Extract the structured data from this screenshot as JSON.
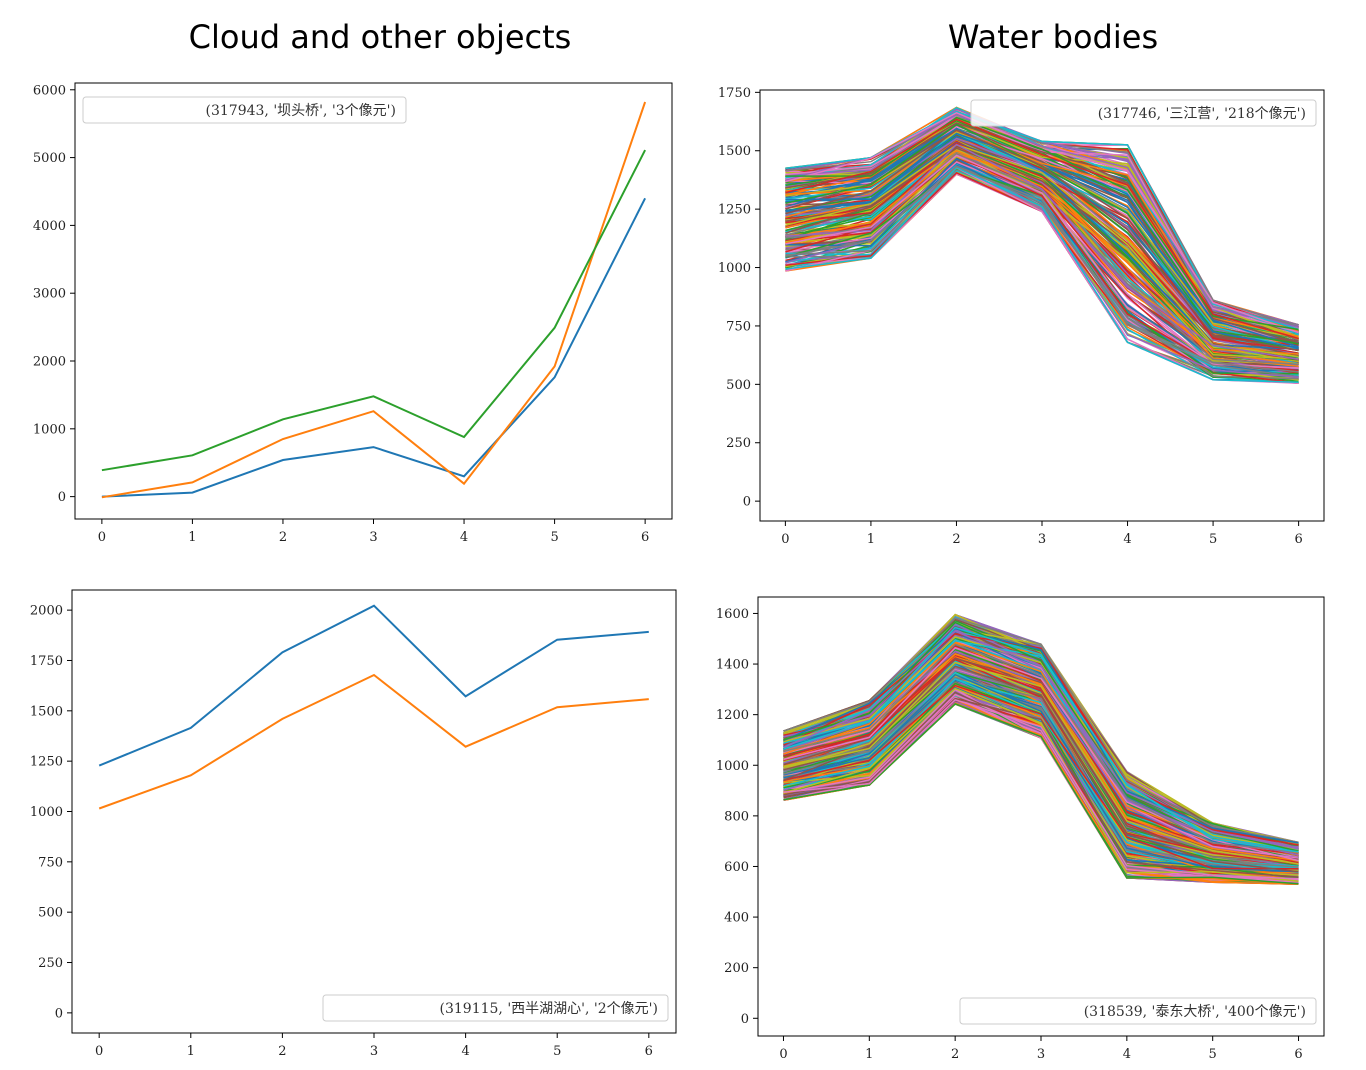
{
  "titles": {
    "left": "Cloud and other objects",
    "right": "Water bodies"
  },
  "colors": {
    "c0": "#1f77b4",
    "c1": "#ff7f0e",
    "c2": "#2ca02c",
    "c3": "#d62728",
    "c4": "#9467bd",
    "c5": "#8c564b",
    "c6": "#e377c2",
    "c7": "#7f7f7f",
    "c8": "#bcbd22",
    "c9": "#17becf"
  },
  "chart_data": [
    {
      "type": "line",
      "x": [
        0,
        1,
        2,
        3,
        4,
        5,
        6
      ],
      "xticks": [
        "0",
        "1",
        "2",
        "3",
        "4",
        "5",
        "6"
      ],
      "yticks": [
        "0",
        "1000",
        "2000",
        "3000",
        "4000",
        "5000",
        "6000"
      ],
      "ylim": [
        -330,
        6100
      ],
      "legend": "(317943, '坝头桥', '3个像元')",
      "legend_loc": "upper-left",
      "series": [
        {
          "color": "#1f77b4",
          "values": [
            0,
            60,
            540,
            730,
            300,
            1760,
            4400
          ]
        },
        {
          "color": "#ff7f0e",
          "values": [
            -10,
            210,
            850,
            1260,
            190,
            1920,
            5820
          ]
        },
        {
          "color": "#2ca02c",
          "values": [
            390,
            610,
            1140,
            1480,
            880,
            2490,
            5110
          ]
        }
      ]
    },
    {
      "type": "line",
      "x": [
        0,
        1,
        2,
        3,
        4,
        5,
        6
      ],
      "xticks": [
        "0",
        "1",
        "2",
        "3",
        "4",
        "5",
        "6"
      ],
      "yticks": [
        "0",
        "250",
        "500",
        "750",
        "1000",
        "1250",
        "1500",
        "1750"
      ],
      "ylim": [
        -85,
        1760
      ],
      "legend": "(317746, '三江营', '218个像元')",
      "legend_loc": "upper-right",
      "bundle": {
        "count": 218,
        "low": [
          985,
          1040,
          1400,
          1240,
          680,
          520,
          505
        ],
        "high": [
          1425,
          1470,
          1685,
          1540,
          1525,
          860,
          755
        ]
      }
    },
    {
      "type": "line",
      "x": [
        0,
        1,
        2,
        3,
        4,
        5,
        6
      ],
      "xticks": [
        "0",
        "1",
        "2",
        "3",
        "4",
        "5",
        "6"
      ],
      "yticks": [
        "0",
        "250",
        "500",
        "750",
        "1000",
        "1250",
        "1500",
        "1750",
        "2000"
      ],
      "ylim": [
        -100,
        2100
      ],
      "legend": "(319115, '西半湖湖心', '2个像元')",
      "legend_loc": "lower-right",
      "series": [
        {
          "color": "#1f77b4",
          "values": [
            1228,
            1415,
            1790,
            2022,
            1572,
            1853,
            1892
          ]
        },
        {
          "color": "#ff7f0e",
          "values": [
            1015,
            1180,
            1460,
            1678,
            1322,
            1518,
            1558
          ]
        }
      ]
    },
    {
      "type": "line",
      "x": [
        0,
        1,
        2,
        3,
        4,
        5,
        6
      ],
      "xticks": [
        "0",
        "1",
        "2",
        "3",
        "4",
        "5",
        "6"
      ],
      "yticks": [
        "0",
        "200",
        "400",
        "600",
        "800",
        "1000",
        "1200",
        "1400",
        "1600"
      ],
      "ylim": [
        -70,
        1665
      ],
      "legend": "(318539, '泰东大桥', '400个像元')",
      "legend_loc": "lower-right",
      "bundle": {
        "count": 400,
        "low": [
          862,
          922,
          1242,
          1108,
          555,
          538,
          530
        ],
        "high": [
          1135,
          1255,
          1595,
          1478,
          975,
          772,
          695
        ]
      }
    }
  ]
}
